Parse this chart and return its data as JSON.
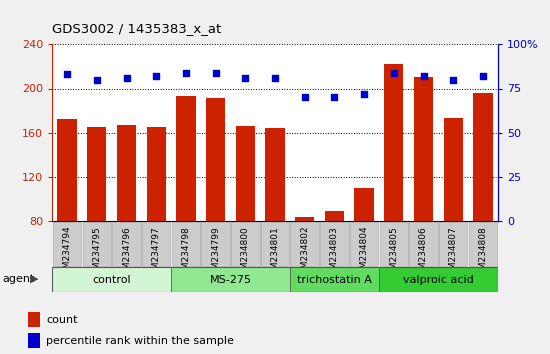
{
  "title": "GDS3002 / 1435383_x_at",
  "samples": [
    "GSM234794",
    "GSM234795",
    "GSM234796",
    "GSM234797",
    "GSM234798",
    "GSM234799",
    "GSM234800",
    "GSM234801",
    "GSM234802",
    "GSM234803",
    "GSM234804",
    "GSM234805",
    "GSM234806",
    "GSM234807",
    "GSM234808"
  ],
  "counts": [
    172,
    165,
    167,
    165,
    193,
    191,
    166,
    164,
    84,
    89,
    110,
    222,
    210,
    173,
    196
  ],
  "percentiles": [
    83,
    80,
    81,
    82,
    84,
    84,
    81,
    81,
    70,
    70,
    72,
    84,
    82,
    80,
    82
  ],
  "bar_color": "#cc2200",
  "dot_color": "#0000cc",
  "ylim_left": [
    80,
    240
  ],
  "ylim_right": [
    0,
    100
  ],
  "yticks_left": [
    80,
    120,
    160,
    200,
    240
  ],
  "yticks_right": [
    0,
    25,
    50,
    75,
    100
  ],
  "groups": [
    {
      "label": "control",
      "start": 0,
      "end": 4,
      "color": "#d4f5d4"
    },
    {
      "label": "MS-275",
      "start": 4,
      "end": 8,
      "color": "#90e890"
    },
    {
      "label": "trichostatin A",
      "start": 8,
      "end": 11,
      "color": "#60dd60"
    },
    {
      "label": "valproic acid",
      "start": 11,
      "end": 15,
      "color": "#33cc33"
    }
  ],
  "legend_count_label": "count",
  "legend_percentile_label": "percentile rank within the sample",
  "agent_label": "agent",
  "bar_width": 0.65,
  "fig_bg_color": "#f0f0f0",
  "plot_bg_color": "#ffffff",
  "xtick_box_color": "#cccccc"
}
